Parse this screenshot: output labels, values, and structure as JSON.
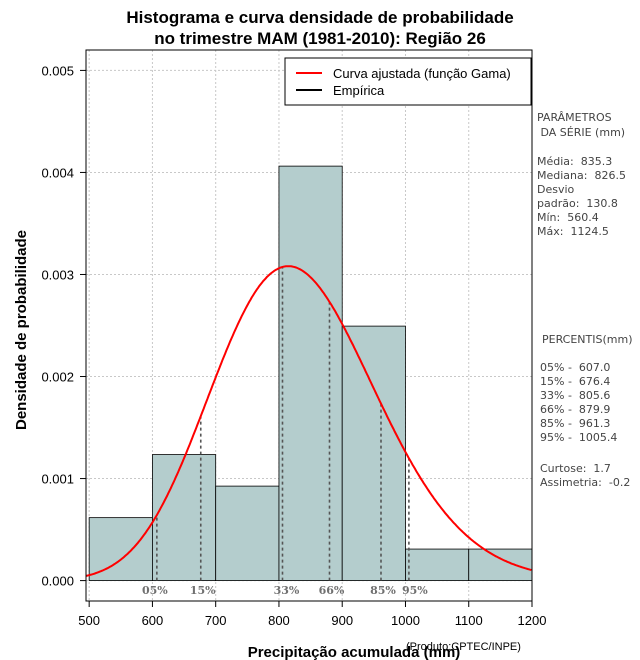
{
  "title_line1": "Histograma e curva densidade de probabilidade",
  "title_line2": "no trimestre MAM (1981-2010): Região 26",
  "credit": "(Produto:CPTEC/INPE)",
  "side_panel": {
    "params_header1": "PARÂMETROS",
    "params_header2": " DA SÉRIE (mm)",
    "stats": [
      "Média:  835.3",
      "Mediana:  826.5",
      "Desvio",
      "padrão:  130.8",
      "Mín:  560.4",
      "Máx:  1124.5"
    ],
    "percentiles_header": "PERCENTIS(mm)",
    "percentiles": [
      "05% -  607.0",
      "15% -  676.4",
      "33% -  805.6",
      "66% -  879.9",
      "85% -  961.3",
      "95% -  1005.4"
    ],
    "shape": [
      "Curtose:  1.7",
      "Assimetria:  -0.2"
    ]
  },
  "colors": {
    "bar_fill": "#b4cdcd",
    "curve": "#ff0000",
    "percentile_line": "#555555",
    "percentile_label": "#707070"
  },
  "chart_data": {
    "type": "histogram",
    "xlabel": "Precipitação acumulada (mm)",
    "ylabel": "Densidade de probabilidade",
    "xlim": [
      495,
      1200
    ],
    "ylim": [
      -0.0002,
      0.0052
    ],
    "xticks": [
      500,
      600,
      700,
      800,
      900,
      1000,
      1100,
      1200
    ],
    "yticks": [
      0.0,
      0.001,
      0.002,
      0.003,
      0.004,
      0.005
    ],
    "ytick_labels": [
      "0.000",
      "0.001",
      "0.002",
      "0.003",
      "0.004",
      "0.005"
    ],
    "grid": true,
    "legend_position": "top-right",
    "legend": [
      {
        "label": "Curva ajustada (função Gama)",
        "color": "#ff0000"
      },
      {
        "label": "Empírica",
        "color": "#000000"
      }
    ],
    "bins": [
      {
        "from": 500,
        "to": 600,
        "density": 0.000617
      },
      {
        "from": 600,
        "to": 700,
        "density": 0.001235
      },
      {
        "from": 700,
        "to": 800,
        "density": 0.000926
      },
      {
        "from": 800,
        "to": 900,
        "density": 0.004062
      },
      {
        "from": 900,
        "to": 1000,
        "density": 0.002494
      },
      {
        "from": 1000,
        "to": 1100,
        "density": 0.000309
      },
      {
        "from": 1100,
        "to": 1200,
        "density": 0.000309
      }
    ],
    "gamma_fit": {
      "mean": 835.3,
      "sd": 130.8
    },
    "percentiles": [
      {
        "label": "05%",
        "value": 607.0
      },
      {
        "label": "15%",
        "value": 676.4
      },
      {
        "label": "33%",
        "value": 805.6
      },
      {
        "label": "66%",
        "value": 879.9
      },
      {
        "label": "85%",
        "value": 961.3
      },
      {
        "label": "95%",
        "value": 1005.4
      }
    ]
  }
}
